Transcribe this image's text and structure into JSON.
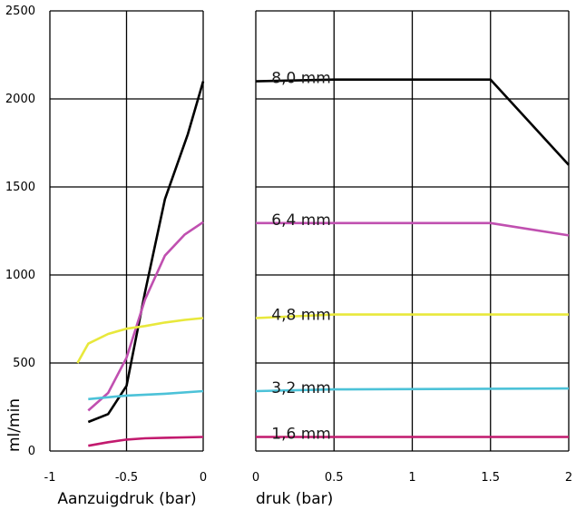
{
  "chart_data": [
    {
      "type": "line",
      "xlabel": "Aanzuigdruk (bar)",
      "ylabel": "ml/min",
      "xlim": [
        -1,
        0
      ],
      "ylim": [
        0,
        2500
      ],
      "x_ticks": [
        "-1",
        "-0.5",
        "0"
      ],
      "y_ticks": [
        "0",
        "500",
        "1000",
        "1500",
        "2000",
        "2500"
      ],
      "grid": true,
      "series": [
        {
          "color": "#000000",
          "points": [
            [
              -0.75,
              165
            ],
            [
              -0.62,
              210
            ],
            [
              -0.5,
              370
            ],
            [
              -0.38,
              900
            ],
            [
              -0.25,
              1430
            ],
            [
              -0.1,
              1800
            ],
            [
              0,
              2100
            ]
          ]
        },
        {
          "color": "#c050b0",
          "points": [
            [
              -0.75,
              230
            ],
            [
              -0.62,
              330
            ],
            [
              -0.5,
              530
            ],
            [
              -0.38,
              860
            ],
            [
              -0.25,
              1110
            ],
            [
              -0.12,
              1230
            ],
            [
              0,
              1300
            ]
          ]
        },
        {
          "color": "#e8e83c",
          "points": [
            [
              -0.82,
              500
            ],
            [
              -0.75,
              610
            ],
            [
              -0.62,
              665
            ],
            [
              -0.5,
              695
            ],
            [
              -0.38,
              710
            ],
            [
              -0.25,
              730
            ],
            [
              -0.12,
              745
            ],
            [
              0,
              755
            ]
          ]
        },
        {
          "color": "#4cc2d8",
          "points": [
            [
              -0.75,
              295
            ],
            [
              -0.5,
              315
            ],
            [
              -0.25,
              325
            ],
            [
              0,
              340
            ]
          ]
        },
        {
          "color": "#c21a6e",
          "points": [
            [
              -0.75,
              30
            ],
            [
              -0.62,
              50
            ],
            [
              -0.5,
              65
            ],
            [
              -0.38,
              72
            ],
            [
              -0.25,
              75
            ],
            [
              0,
              80
            ]
          ]
        }
      ]
    },
    {
      "type": "line",
      "xlabel": "druk (bar)",
      "xlim": [
        0,
        2
      ],
      "ylim": [
        0,
        2500
      ],
      "x_ticks": [
        "0",
        "0.5",
        "1",
        "1.5",
        "2"
      ],
      "grid": true,
      "series": [
        {
          "name": "8,0 mm",
          "color": "#000000",
          "points": [
            [
              0,
              2100
            ],
            [
              0.5,
              2110
            ],
            [
              1.5,
              2110
            ],
            [
              2,
              1625
            ]
          ]
        },
        {
          "name": "6,4 mm",
          "color": "#c050b0",
          "points": [
            [
              0,
              1295
            ],
            [
              1.5,
              1295
            ],
            [
              2,
              1225
            ]
          ]
        },
        {
          "name": "4,8 mm",
          "color": "#e8e83c",
          "points": [
            [
              0,
              755
            ],
            [
              0.5,
              775
            ],
            [
              2,
              775
            ]
          ]
        },
        {
          "name": "3,2 mm",
          "color": "#4cc2d8",
          "points": [
            [
              0,
              340
            ],
            [
              0.5,
              350
            ],
            [
              2,
              355
            ]
          ]
        },
        {
          "name": "1,6 mm",
          "color": "#c21a6e",
          "points": [
            [
              0,
              80
            ],
            [
              2,
              80
            ]
          ]
        }
      ]
    }
  ]
}
